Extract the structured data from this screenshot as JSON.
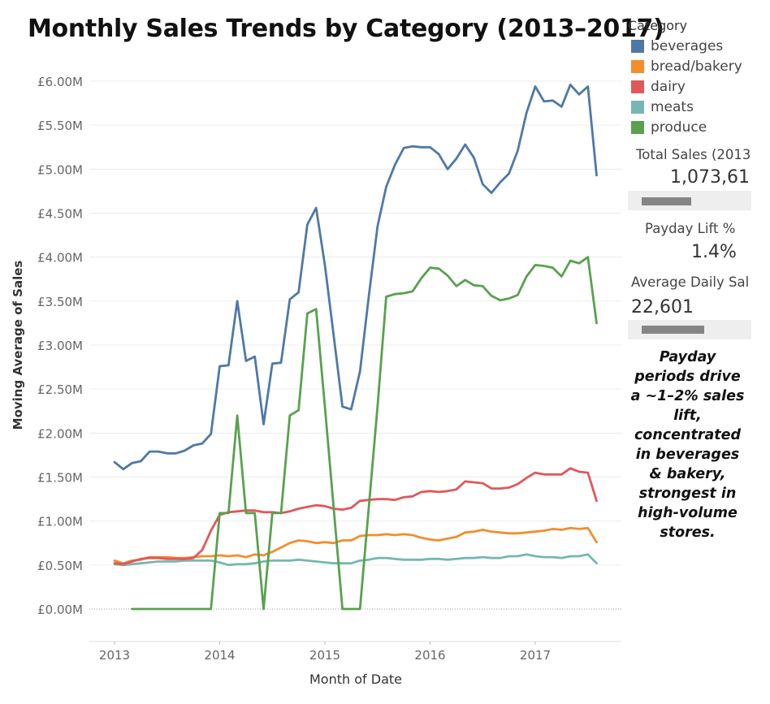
{
  "chart_data": {
    "type": "line",
    "title": "Monthly Sales Trends by Category (2013–2017)",
    "xlabel": "Month of Date",
    "ylabel": "Moving Average of Sales",
    "x_ticks": [
      "2013",
      "2014",
      "2015",
      "2016",
      "2017"
    ],
    "y_ticks": [
      "£0.00M",
      "£0.50M",
      "£1.00M",
      "£1.50M",
      "£2.00M",
      "£2.50M",
      "£3.00M",
      "£3.50M",
      "£4.00M",
      "£4.50M",
      "£5.00M",
      "£5.50M",
      "£6.00M"
    ],
    "ylim": [
      0,
      6.0
    ],
    "y_unit": "£M",
    "grid": true,
    "legend": {
      "title": "Category",
      "position": "right"
    },
    "series": [
      {
        "name": "beverages",
        "color": "#4e79a7",
        "points": [
          [
            "2013-01",
            1.67
          ],
          [
            "2013-02",
            1.59
          ],
          [
            "2013-03",
            1.66
          ],
          [
            "2013-04",
            1.68
          ],
          [
            "2013-05",
            1.79
          ],
          [
            "2013-06",
            1.79
          ],
          [
            "2013-07",
            1.77
          ],
          [
            "2013-08",
            1.77
          ],
          [
            "2013-09",
            1.8
          ],
          [
            "2013-10",
            1.86
          ],
          [
            "2013-11",
            1.88
          ],
          [
            "2013-12",
            1.99
          ],
          [
            "2014-01",
            2.76
          ],
          [
            "2014-02",
            2.77
          ],
          [
            "2014-03",
            3.5
          ],
          [
            "2014-04",
            2.82
          ],
          [
            "2014-05",
            2.87
          ],
          [
            "2014-06",
            2.1
          ],
          [
            "2014-07",
            2.79
          ],
          [
            "2014-08",
            2.8
          ],
          [
            "2014-09",
            3.52
          ],
          [
            "2014-10",
            3.6
          ],
          [
            "2014-11",
            4.37
          ],
          [
            "2014-12",
            4.56
          ],
          [
            "2015-01",
            3.91
          ],
          [
            "2015-02",
            3.11
          ],
          [
            "2015-03",
            2.3
          ],
          [
            "2015-04",
            2.27
          ],
          [
            "2015-05",
            2.7
          ],
          [
            "2015-06",
            3.55
          ],
          [
            "2015-07",
            4.35
          ],
          [
            "2015-08",
            4.8
          ],
          [
            "2015-09",
            5.05
          ],
          [
            "2015-10",
            5.24
          ],
          [
            "2015-11",
            5.26
          ],
          [
            "2015-12",
            5.25
          ],
          [
            "2016-01",
            5.25
          ],
          [
            "2016-02",
            5.17
          ],
          [
            "2016-03",
            5.0
          ],
          [
            "2016-04",
            5.12
          ],
          [
            "2016-05",
            5.28
          ],
          [
            "2016-06",
            5.13
          ],
          [
            "2016-07",
            4.83
          ],
          [
            "2016-08",
            4.73
          ],
          [
            "2016-09",
            4.85
          ],
          [
            "2016-10",
            4.95
          ],
          [
            "2016-11",
            5.21
          ],
          [
            "2016-12",
            5.64
          ],
          [
            "2017-01",
            5.94
          ],
          [
            "2017-02",
            5.77
          ],
          [
            "2017-03",
            5.78
          ],
          [
            "2017-04",
            5.71
          ],
          [
            "2017-05",
            5.96
          ],
          [
            "2017-06",
            5.85
          ],
          [
            "2017-07",
            5.94
          ],
          [
            "2017-08",
            4.93
          ]
        ]
      },
      {
        "name": "bread/bakery",
        "color": "#f28e2b",
        "points": [
          [
            "2013-01",
            0.55
          ],
          [
            "2013-02",
            0.52
          ],
          [
            "2013-03",
            0.55
          ],
          [
            "2013-04",
            0.56
          ],
          [
            "2013-05",
            0.59
          ],
          [
            "2013-06",
            0.59
          ],
          [
            "2013-07",
            0.59
          ],
          [
            "2013-08",
            0.58
          ],
          [
            "2013-09",
            0.58
          ],
          [
            "2013-10",
            0.59
          ],
          [
            "2013-11",
            0.6
          ],
          [
            "2013-12",
            0.6
          ],
          [
            "2014-01",
            0.61
          ],
          [
            "2014-02",
            0.6
          ],
          [
            "2014-03",
            0.61
          ],
          [
            "2014-04",
            0.59
          ],
          [
            "2014-05",
            0.62
          ],
          [
            "2014-06",
            0.61
          ],
          [
            "2014-07",
            0.65
          ],
          [
            "2014-08",
            0.7
          ],
          [
            "2014-09",
            0.75
          ],
          [
            "2014-10",
            0.78
          ],
          [
            "2014-11",
            0.77
          ],
          [
            "2014-12",
            0.75
          ],
          [
            "2015-01",
            0.76
          ],
          [
            "2015-02",
            0.75
          ],
          [
            "2015-03",
            0.78
          ],
          [
            "2015-04",
            0.78
          ],
          [
            "2015-05",
            0.83
          ],
          [
            "2015-06",
            0.84
          ],
          [
            "2015-07",
            0.84
          ],
          [
            "2015-08",
            0.85
          ],
          [
            "2015-09",
            0.84
          ],
          [
            "2015-10",
            0.85
          ],
          [
            "2015-11",
            0.84
          ],
          [
            "2015-12",
            0.81
          ],
          [
            "2016-01",
            0.79
          ],
          [
            "2016-02",
            0.78
          ],
          [
            "2016-03",
            0.8
          ],
          [
            "2016-04",
            0.82
          ],
          [
            "2016-05",
            0.87
          ],
          [
            "2016-06",
            0.88
          ],
          [
            "2016-07",
            0.9
          ],
          [
            "2016-08",
            0.88
          ],
          [
            "2016-09",
            0.87
          ],
          [
            "2016-10",
            0.86
          ],
          [
            "2016-11",
            0.86
          ],
          [
            "2016-12",
            0.87
          ],
          [
            "2017-01",
            0.88
          ],
          [
            "2017-02",
            0.89
          ],
          [
            "2017-03",
            0.91
          ],
          [
            "2017-04",
            0.9
          ],
          [
            "2017-05",
            0.92
          ],
          [
            "2017-06",
            0.91
          ],
          [
            "2017-07",
            0.92
          ],
          [
            "2017-08",
            0.76
          ]
        ]
      },
      {
        "name": "dairy",
        "color": "#e15759",
        "points": [
          [
            "2013-01",
            0.52
          ],
          [
            "2013-02",
            0.51
          ],
          [
            "2013-03",
            0.54
          ],
          [
            "2013-04",
            0.57
          ],
          [
            "2013-05",
            0.58
          ],
          [
            "2013-06",
            0.58
          ],
          [
            "2013-07",
            0.57
          ],
          [
            "2013-08",
            0.57
          ],
          [
            "2013-09",
            0.57
          ],
          [
            "2013-10",
            0.58
          ],
          [
            "2013-11",
            0.67
          ],
          [
            "2013-12",
            0.89
          ],
          [
            "2014-01",
            1.07
          ],
          [
            "2014-02",
            1.1
          ],
          [
            "2014-03",
            1.11
          ],
          [
            "2014-04",
            1.12
          ],
          [
            "2014-05",
            1.12
          ],
          [
            "2014-06",
            1.1
          ],
          [
            "2014-07",
            1.1
          ],
          [
            "2014-08",
            1.09
          ],
          [
            "2014-09",
            1.11
          ],
          [
            "2014-10",
            1.14
          ],
          [
            "2014-11",
            1.16
          ],
          [
            "2014-12",
            1.18
          ],
          [
            "2015-01",
            1.17
          ],
          [
            "2015-02",
            1.14
          ],
          [
            "2015-03",
            1.13
          ],
          [
            "2015-04",
            1.15
          ],
          [
            "2015-05",
            1.23
          ],
          [
            "2015-06",
            1.24
          ],
          [
            "2015-07",
            1.25
          ],
          [
            "2015-08",
            1.25
          ],
          [
            "2015-09",
            1.24
          ],
          [
            "2015-10",
            1.27
          ],
          [
            "2015-11",
            1.28
          ],
          [
            "2015-12",
            1.33
          ],
          [
            "2016-01",
            1.34
          ],
          [
            "2016-02",
            1.33
          ],
          [
            "2016-03",
            1.34
          ],
          [
            "2016-04",
            1.36
          ],
          [
            "2016-05",
            1.45
          ],
          [
            "2016-06",
            1.44
          ],
          [
            "2016-07",
            1.43
          ],
          [
            "2016-08",
            1.37
          ],
          [
            "2016-09",
            1.37
          ],
          [
            "2016-10",
            1.38
          ],
          [
            "2016-11",
            1.42
          ],
          [
            "2016-12",
            1.49
          ],
          [
            "2017-01",
            1.55
          ],
          [
            "2017-02",
            1.53
          ],
          [
            "2017-03",
            1.53
          ],
          [
            "2017-04",
            1.53
          ],
          [
            "2017-05",
            1.6
          ],
          [
            "2017-06",
            1.56
          ],
          [
            "2017-07",
            1.55
          ],
          [
            "2017-08",
            1.23
          ]
        ]
      },
      {
        "name": "meats",
        "color": "#76b7b2",
        "points": [
          [
            "2013-01",
            0.51
          ],
          [
            "2013-02",
            0.5
          ],
          [
            "2013-03",
            0.51
          ],
          [
            "2013-04",
            0.52
          ],
          [
            "2013-05",
            0.53
          ],
          [
            "2013-06",
            0.54
          ],
          [
            "2013-07",
            0.54
          ],
          [
            "2013-08",
            0.54
          ],
          [
            "2013-09",
            0.55
          ],
          [
            "2013-10",
            0.55
          ],
          [
            "2013-11",
            0.55
          ],
          [
            "2013-12",
            0.55
          ],
          [
            "2014-01",
            0.53
          ],
          [
            "2014-02",
            0.5
          ],
          [
            "2014-03",
            0.51
          ],
          [
            "2014-04",
            0.51
          ],
          [
            "2014-05",
            0.52
          ],
          [
            "2014-06",
            0.54
          ],
          [
            "2014-07",
            0.55
          ],
          [
            "2014-08",
            0.55
          ],
          [
            "2014-09",
            0.55
          ],
          [
            "2014-10",
            0.56
          ],
          [
            "2014-11",
            0.55
          ],
          [
            "2014-12",
            0.54
          ],
          [
            "2015-01",
            0.53
          ],
          [
            "2015-02",
            0.52
          ],
          [
            "2015-03",
            0.52
          ],
          [
            "2015-04",
            0.52
          ],
          [
            "2015-05",
            0.55
          ],
          [
            "2015-06",
            0.56
          ],
          [
            "2015-07",
            0.58
          ],
          [
            "2015-08",
            0.58
          ],
          [
            "2015-09",
            0.57
          ],
          [
            "2015-10",
            0.56
          ],
          [
            "2015-11",
            0.56
          ],
          [
            "2015-12",
            0.56
          ],
          [
            "2016-01",
            0.57
          ],
          [
            "2016-02",
            0.57
          ],
          [
            "2016-03",
            0.56
          ],
          [
            "2016-04",
            0.57
          ],
          [
            "2016-05",
            0.58
          ],
          [
            "2016-06",
            0.58
          ],
          [
            "2016-07",
            0.59
          ],
          [
            "2016-08",
            0.58
          ],
          [
            "2016-09",
            0.58
          ],
          [
            "2016-10",
            0.6
          ],
          [
            "2016-11",
            0.6
          ],
          [
            "2016-12",
            0.62
          ],
          [
            "2017-01",
            0.6
          ],
          [
            "2017-02",
            0.59
          ],
          [
            "2017-03",
            0.59
          ],
          [
            "2017-04",
            0.58
          ],
          [
            "2017-05",
            0.6
          ],
          [
            "2017-06",
            0.6
          ],
          [
            "2017-07",
            0.62
          ],
          [
            "2017-08",
            0.52
          ]
        ]
      },
      {
        "name": "produce",
        "color": "#59a14f",
        "points": [
          [
            "2013-03",
            0.0
          ],
          [
            "2013-04",
            0.0
          ],
          [
            "2013-05",
            0.0
          ],
          [
            "2013-06",
            0.0
          ],
          [
            "2013-07",
            0.0
          ],
          [
            "2013-08",
            0.0
          ],
          [
            "2013-09",
            0.0
          ],
          [
            "2013-10",
            0.0
          ],
          [
            "2013-11",
            0.0
          ],
          [
            "2013-12",
            0.0
          ],
          [
            "2014-01",
            1.09
          ],
          [
            "2014-02",
            1.09
          ],
          [
            "2014-03",
            2.2
          ],
          [
            "2014-04",
            1.09
          ],
          [
            "2014-05",
            1.09
          ],
          [
            "2014-06",
            0.0
          ],
          [
            "2014-07",
            1.09
          ],
          [
            "2014-08",
            1.09
          ],
          [
            "2014-09",
            2.2
          ],
          [
            "2014-10",
            2.26
          ],
          [
            "2014-11",
            3.36
          ],
          [
            "2014-12",
            3.41
          ],
          [
            "2015-01",
            2.3
          ],
          [
            "2015-02",
            1.15
          ],
          [
            "2015-03",
            0.0
          ],
          [
            "2015-04",
            0.0
          ],
          [
            "2015-05",
            0.0
          ],
          [
            "2015-06",
            1.15
          ],
          [
            "2015-07",
            2.3
          ],
          [
            "2015-08",
            3.55
          ],
          [
            "2015-09",
            3.58
          ],
          [
            "2015-10",
            3.59
          ],
          [
            "2015-11",
            3.61
          ],
          [
            "2015-12",
            3.76
          ],
          [
            "2016-01",
            3.88
          ],
          [
            "2016-02",
            3.87
          ],
          [
            "2016-03",
            3.79
          ],
          [
            "2016-04",
            3.67
          ],
          [
            "2016-05",
            3.74
          ],
          [
            "2016-06",
            3.68
          ],
          [
            "2016-07",
            3.67
          ],
          [
            "2016-08",
            3.56
          ],
          [
            "2016-09",
            3.51
          ],
          [
            "2016-10",
            3.53
          ],
          [
            "2016-11",
            3.57
          ],
          [
            "2016-12",
            3.78
          ],
          [
            "2017-01",
            3.91
          ],
          [
            "2017-02",
            3.9
          ],
          [
            "2017-03",
            3.88
          ],
          [
            "2017-04",
            3.78
          ],
          [
            "2017-05",
            3.96
          ],
          [
            "2017-06",
            3.93
          ],
          [
            "2017-07",
            4.0
          ],
          [
            "2017-08",
            3.25
          ]
        ]
      }
    ]
  },
  "kpis": {
    "total_sales": {
      "label": "Total Sales (2013",
      "value": "1,073,61",
      "bar_fraction": 0.52
    },
    "payday_lift": {
      "label": "Payday Lift %",
      "value": "1.4%"
    },
    "avg_daily": {
      "label": "Average Daily Sal",
      "value": "22,601",
      "bar_fraction": 0.65
    }
  },
  "annotation": "Payday periods drive a ~1–2% sales lift, concentrated in beverages & bakery, strongest in high-volume stores."
}
